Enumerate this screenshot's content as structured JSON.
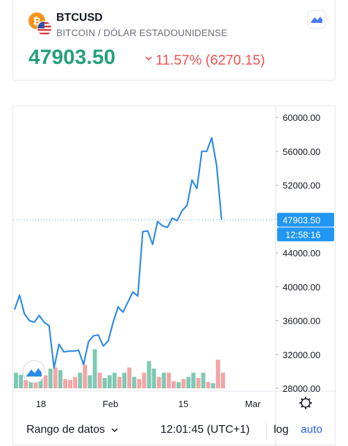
{
  "header": {
    "symbol": "BTCUSD",
    "description": "BITCOIN / DÓLAR ESTADOUNIDENSE",
    "price": "47903.50",
    "change": "11.57% (6270.15)",
    "coin_icon": "bitcoin-icon",
    "flag_icon": "usa-flag-icon",
    "widget_icon": "chart-widget-icon"
  },
  "colors": {
    "price_up": "#26a17b",
    "change_down": "#ef5350",
    "line": "#2d8ae5",
    "volume_up": "#7fc9b4",
    "volume_down": "#f3a6a6",
    "accent": "#2962ff"
  },
  "price_axis": {
    "ticks": [
      "60000.00",
      "56000.00",
      "52000.00",
      "48000.00",
      "44000.00",
      "40000.00",
      "36000.00",
      "32000.00",
      "28000.00"
    ],
    "last_price_label": "47903.50",
    "countdown_label": "12:58:16"
  },
  "time_axis": {
    "ticks": [
      "18",
      "Feb",
      "15",
      "Mar"
    ],
    "settings_icon": "gear-icon"
  },
  "chart_data": {
    "type": "line",
    "series": [
      {
        "values": [
          37300,
          39000,
          36800,
          36000,
          35800,
          36600,
          35800,
          35400,
          30400,
          33200,
          32300,
          32400,
          32400,
          32500,
          30800,
          33500,
          34200,
          34300,
          33000,
          33600,
          35800,
          37600,
          37000,
          38200,
          39400,
          38900,
          46500,
          46600,
          45000,
          47700,
          47200,
          47000,
          48100,
          47800,
          49000,
          49600,
          52600,
          51600,
          56000,
          56000,
          57600,
          54300,
          47903.5
        ]
      }
    ],
    "volume": [
      {
        "value": 30,
        "dir": "up"
      },
      {
        "value": 26,
        "dir": "up"
      },
      {
        "value": 16,
        "dir": "down"
      },
      {
        "value": 28,
        "dir": "up"
      },
      {
        "value": 25,
        "dir": "down"
      },
      {
        "value": 23,
        "dir": "up"
      },
      {
        "value": 25,
        "dir": "down"
      },
      {
        "value": 38,
        "dir": "up"
      },
      {
        "value": 40,
        "dir": "down"
      },
      {
        "value": 35,
        "dir": "up"
      },
      {
        "value": 18,
        "dir": "down"
      },
      {
        "value": 16,
        "dir": "down"
      },
      {
        "value": 22,
        "dir": "down"
      },
      {
        "value": 30,
        "dir": "up"
      },
      {
        "value": 45,
        "dir": "down"
      },
      {
        "value": 25,
        "dir": "up"
      },
      {
        "value": 75,
        "dir": "up"
      },
      {
        "value": 30,
        "dir": "down"
      },
      {
        "value": 20,
        "dir": "up"
      },
      {
        "value": 25,
        "dir": "up"
      },
      {
        "value": 30,
        "dir": "up"
      },
      {
        "value": 22,
        "dir": "down"
      },
      {
        "value": 30,
        "dir": "up"
      },
      {
        "value": 40,
        "dir": "down"
      },
      {
        "value": 22,
        "dir": "up"
      },
      {
        "value": 18,
        "dir": "down"
      },
      {
        "value": 30,
        "dir": "down"
      },
      {
        "value": 52,
        "dir": "up"
      },
      {
        "value": 38,
        "dir": "up"
      },
      {
        "value": 22,
        "dir": "down"
      },
      {
        "value": 30,
        "dir": "up"
      },
      {
        "value": 30,
        "dir": "down"
      },
      {
        "value": 14,
        "dir": "down"
      },
      {
        "value": 12,
        "dir": "up"
      },
      {
        "value": 18,
        "dir": "down"
      },
      {
        "value": 22,
        "dir": "up"
      },
      {
        "value": 30,
        "dir": "up"
      },
      {
        "value": 20,
        "dir": "down"
      },
      {
        "value": 30,
        "dir": "up"
      },
      {
        "value": 12,
        "dir": "down"
      },
      {
        "value": 10,
        "dir": "up"
      },
      {
        "value": 55,
        "dir": "down"
      },
      {
        "value": 30,
        "dir": "down"
      }
    ],
    "ylim": [
      28000,
      60000
    ],
    "y_ticks": [
      60000,
      56000,
      52000,
      48000,
      44000,
      40000,
      36000,
      32000,
      28000
    ],
    "x_ticks": [
      {
        "label": "18",
        "index": 2.7
      },
      {
        "label": "Feb",
        "index": 9.6
      },
      {
        "label": "15",
        "index": 17.8
      },
      {
        "label": "Mar",
        "index": 24.5
      }
    ],
    "last_value": 47903.5,
    "grid": false
  },
  "footer": {
    "range_label": "Rango de datos",
    "time": "12:01:45 (UTC+1)",
    "log_label": "log",
    "auto_label": "auto"
  }
}
